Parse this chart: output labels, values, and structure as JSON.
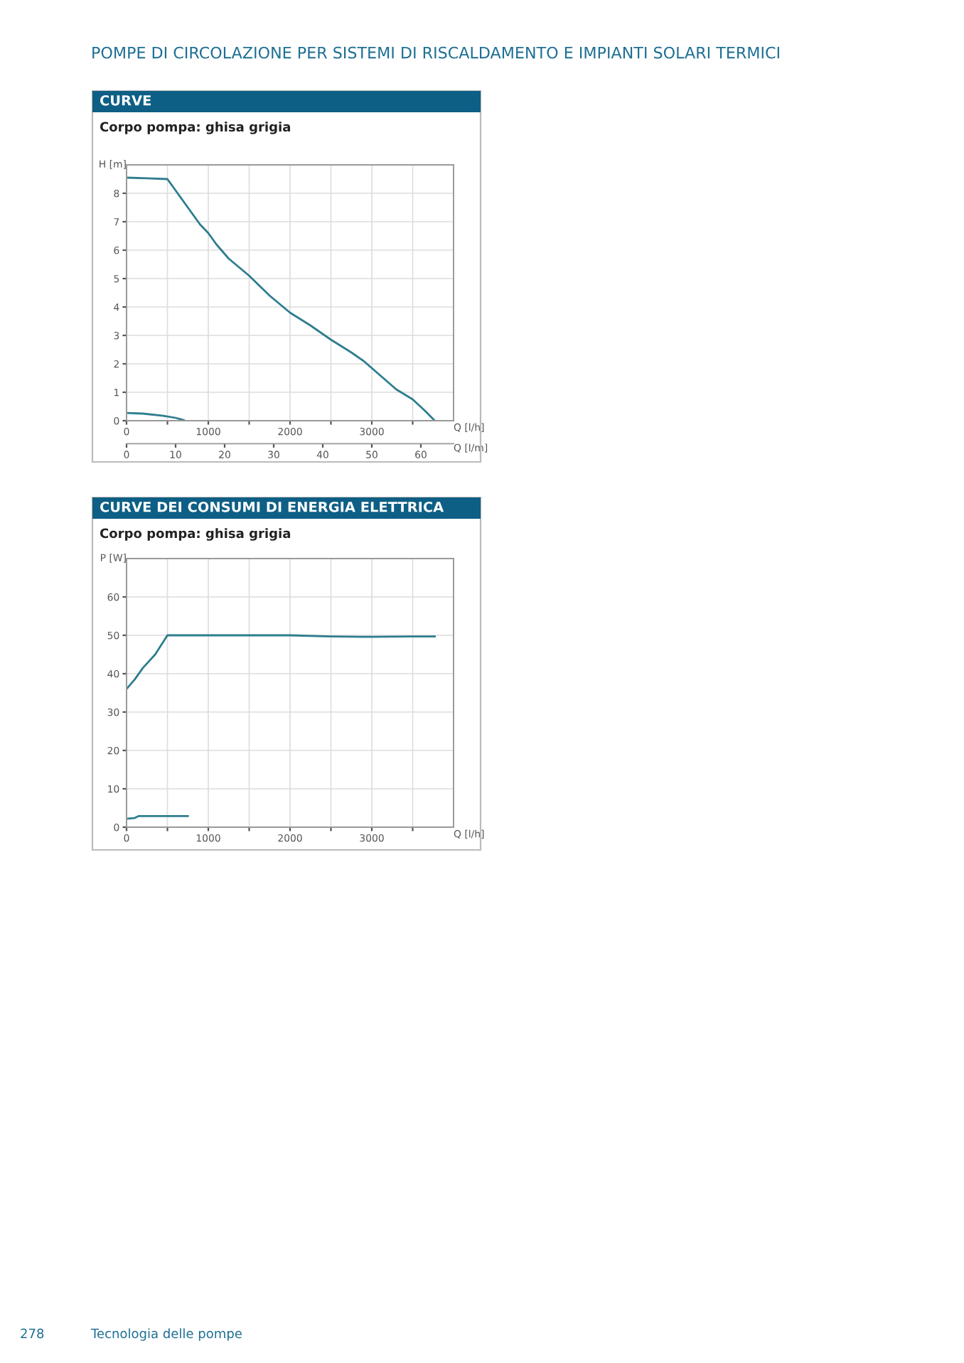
{
  "chart_data": [
    {
      "type": "line",
      "title": "CURVE",
      "subtitle": "Corpo pompa: ghisa grigia",
      "xlabel": "Q [l/h]",
      "ylabel": "H [m]",
      "x2label": "Q [l/m]",
      "annotations": [
        "POMPE DI CIRCOLAZIONE PER SISTEMI DI RISCALDAMENTO E IMPIANTI SOLARI TERMICI"
      ],
      "series": [
        {
          "color": "#2e7d8f",
          "x": [
            0,
            250,
            500,
            600,
            700,
            800,
            900,
            1000,
            1100,
            1250,
            1500,
            1750,
            2000,
            2250,
            2500,
            2750,
            2900,
            3100,
            3300,
            3500,
            3650,
            3770
          ],
          "values": [
            8.55,
            8.53,
            8.5,
            8.1,
            7.7,
            7.3,
            6.9,
            6.6,
            6.2,
            5.7,
            5.1,
            4.4,
            3.8,
            3.35,
            2.85,
            2.4,
            2.1,
            1.6,
            1.1,
            0.75,
            0.35,
            0
          ]
        },
        {
          "color": "#2e7d8f",
          "x": [
            0,
            200,
            450,
            600,
            700
          ],
          "values": [
            0.27,
            0.25,
            0.17,
            0.1,
            0.02
          ]
        }
      ],
      "xlim": [
        0,
        4000
      ],
      "xticks": [
        {
          "value": 0,
          "label": "0"
        },
        {
          "value": 500,
          "label": null
        },
        {
          "value": 1000,
          "label": "1000"
        },
        {
          "value": 1500,
          "label": null
        },
        {
          "value": 2000,
          "label": "2000"
        },
        {
          "value": 2500,
          "label": null
        },
        {
          "value": 3000,
          "label": "3000"
        },
        {
          "value": 3500,
          "label": null
        }
      ],
      "x2lim": [
        0,
        66.67
      ],
      "x2ticks": [
        0,
        10,
        20,
        30,
        40,
        50,
        60
      ],
      "ylim": [
        0,
        9
      ],
      "yticks": [
        0,
        1,
        2,
        3,
        4,
        5,
        6,
        7,
        8
      ],
      "grid": true,
      "legend": false
    },
    {
      "type": "line",
      "title": "CURVE DEI CONSUMI DI ENERGIA ELETTRICA",
      "subtitle": "Corpo pompa: ghisa grigia",
      "xlabel": "Q [l/h]",
      "ylabel": "P [W]",
      "annotations": [
        "278",
        "Tecnologia delle pompe"
      ],
      "series": [
        {
          "color": "#2e7d8f",
          "x": [
            0,
            100,
            200,
            350,
            500,
            1000,
            1500,
            2000,
            2500,
            3000,
            3500,
            3770
          ],
          "values": [
            36,
            38.5,
            41.5,
            45,
            50,
            50,
            50,
            50,
            49.7,
            49.6,
            49.7,
            49.7
          ]
        },
        {
          "color": "#2e7d8f",
          "x": [
            0,
            100,
            150,
            400,
            750
          ],
          "values": [
            2.2,
            2.4,
            2.9,
            2.9,
            2.9
          ]
        }
      ],
      "xlim": [
        0,
        4000
      ],
      "xticks": [
        {
          "value": 0,
          "label": "0"
        },
        {
          "value": 500,
          "label": null
        },
        {
          "value": 1000,
          "label": "1000"
        },
        {
          "value": 1500,
          "label": null
        },
        {
          "value": 2000,
          "label": "2000"
        },
        {
          "value": 2500,
          "label": null
        },
        {
          "value": 3000,
          "label": "3000"
        },
        {
          "value": 3500,
          "label": null
        }
      ],
      "ylim": [
        0,
        70
      ],
      "yticks": [
        0,
        10,
        20,
        30,
        40,
        50,
        60
      ],
      "grid": true,
      "legend": false
    }
  ]
}
